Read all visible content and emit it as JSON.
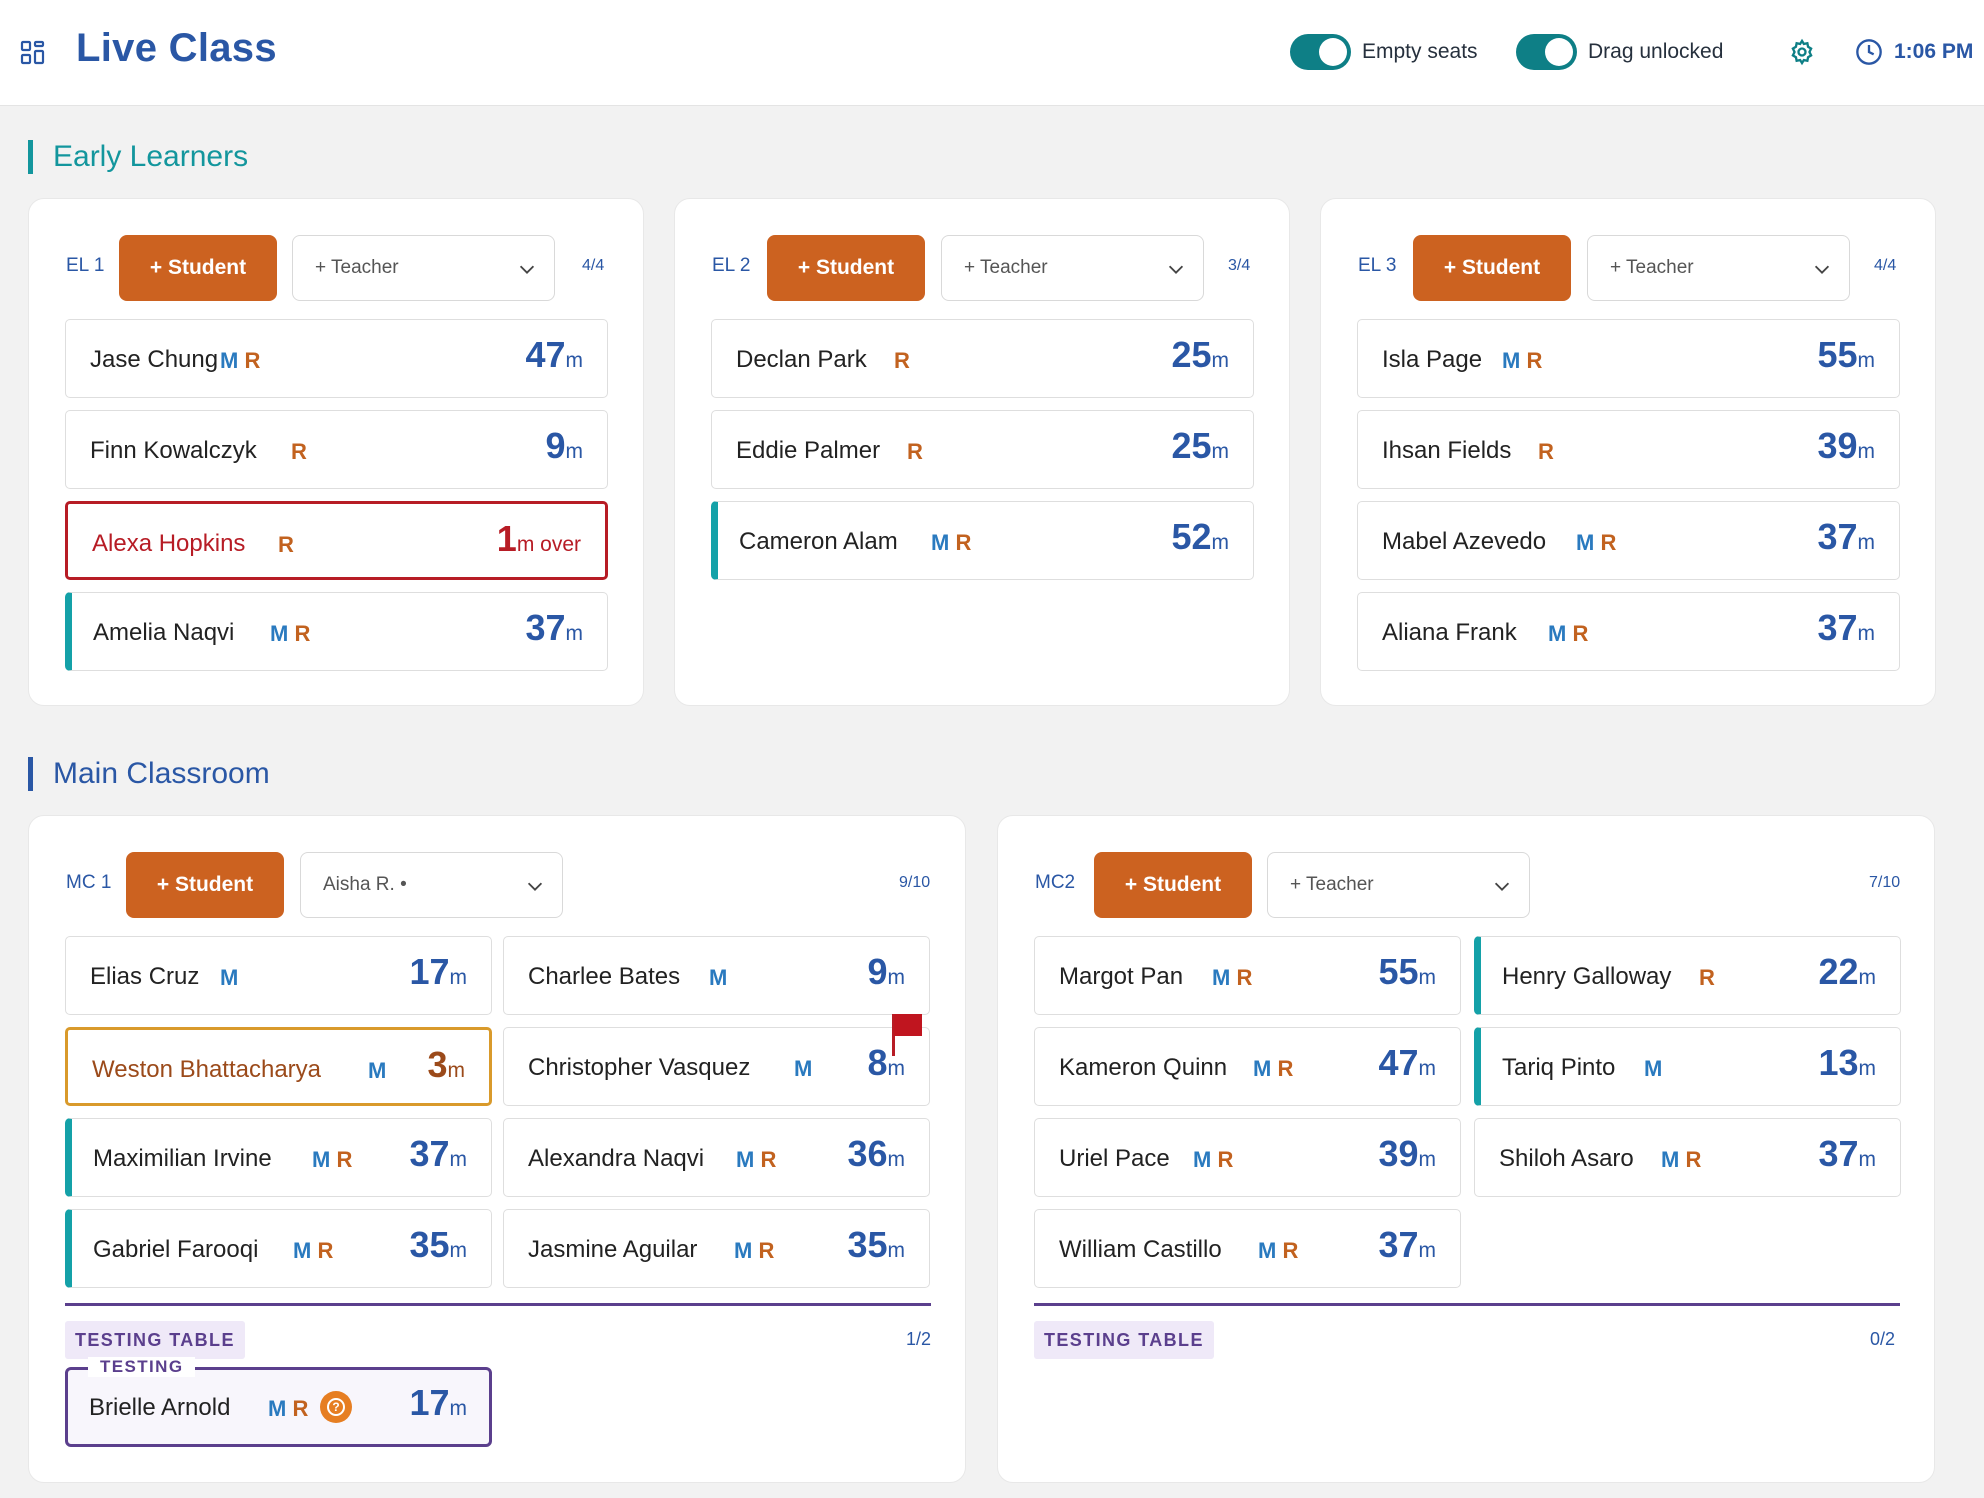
{
  "header": {
    "title": "Live Class",
    "toggle_empty_label": "Empty seats",
    "toggle_drag_label": "Drag unlocked",
    "time": "1:06 PM"
  },
  "colors": {
    "accent": "#2a57a5",
    "teal": "#0e7f86",
    "student_button": "#cc6220",
    "warning_red": "#b71c25",
    "testing_purple": "#5b3f8d"
  },
  "sections": {
    "early": {
      "title": "Early Learners"
    },
    "main": {
      "title": "Main Classroom"
    }
  },
  "tables": {
    "el1": {
      "label": "EL 1",
      "student_btn": "+ Student",
      "teacher": "+ Teacher",
      "count": "4/4",
      "seats": [
        {
          "name": "Jase Chung",
          "tags": "MR",
          "time": "47",
          "unit": "m"
        },
        {
          "name": "Finn Kowalczyk",
          "tags": "R",
          "time": "9",
          "unit": "m"
        },
        {
          "name": "Alexa Hopkins",
          "tags": "R",
          "time": "1",
          "unit": "m over"
        },
        {
          "name": "Amelia Naqvi",
          "tags": "MR",
          "time": "37",
          "unit": "m"
        }
      ]
    },
    "el2": {
      "label": "EL 2",
      "student_btn": "+ Student",
      "teacher": "+ Teacher",
      "count": "3/4",
      "seats": [
        {
          "name": "Declan Park",
          "tags": "R",
          "time": "25",
          "unit": "m"
        },
        {
          "name": "Eddie Palmer",
          "tags": "R",
          "time": "25",
          "unit": "m"
        },
        {
          "name": "Cameron Alam",
          "tags": "MR",
          "time": "52",
          "unit": "m"
        }
      ]
    },
    "el3": {
      "label": "EL 3",
      "student_btn": "+ Student",
      "teacher": "+ Teacher",
      "count": "4/4",
      "seats": [
        {
          "name": "Isla Page",
          "tags": "MR",
          "time": "55",
          "unit": "m"
        },
        {
          "name": "Ihsan Fields",
          "tags": "R",
          "time": "39",
          "unit": "m"
        },
        {
          "name": "Mabel Azevedo",
          "tags": "MR",
          "time": "37",
          "unit": "m"
        },
        {
          "name": "Aliana Frank",
          "tags": "MR",
          "time": "37",
          "unit": "m"
        }
      ]
    },
    "mc1": {
      "label": "MC 1",
      "student_btn": "+ Student",
      "teacher": "Aisha R. •",
      "count": "9/10",
      "seats": [
        {
          "name": "Elias Cruz",
          "tags": "M",
          "time": "17",
          "unit": "m"
        },
        {
          "name": "Charlee Bates",
          "tags": "M",
          "time": "9",
          "unit": "m"
        },
        {
          "name": "Weston Bhattacharya",
          "tags": "M",
          "time": "3",
          "unit": "m"
        },
        {
          "name": "Christopher Vasquez",
          "tags": "M",
          "time": "8",
          "unit": "m"
        },
        {
          "name": "Maximilian Irvine",
          "tags": "MR",
          "time": "37",
          "unit": "m"
        },
        {
          "name": "Alexandra Naqvi",
          "tags": "MR",
          "time": "36",
          "unit": "m"
        },
        {
          "name": "Gabriel Farooqi",
          "tags": "MR",
          "time": "35",
          "unit": "m"
        },
        {
          "name": "Jasmine Aguilar",
          "tags": "MR",
          "time": "35",
          "unit": "m"
        }
      ],
      "testing": {
        "tag": "TESTING TABLE",
        "count": "1/2",
        "legend": "TESTING",
        "seat": {
          "name": "Brielle Arnold",
          "tags": "MR",
          "time": "17",
          "unit": "m"
        }
      }
    },
    "mc2": {
      "label": "MC2",
      "student_btn": "+ Student",
      "teacher": "+ Teacher",
      "count": "7/10",
      "seats": [
        {
          "name": "Margot Pan",
          "tags": "MR",
          "time": "55",
          "unit": "m"
        },
        {
          "name": "Henry Galloway",
          "tags": "R",
          "time": "22",
          "unit": "m"
        },
        {
          "name": "Kameron Quinn",
          "tags": "MR",
          "time": "47",
          "unit": "m"
        },
        {
          "name": "Tariq Pinto",
          "tags": "M",
          "time": "13",
          "unit": "m"
        },
        {
          "name": "Uriel Pace",
          "tags": "MR",
          "time": "39",
          "unit": "m"
        },
        {
          "name": "Shiloh Asaro",
          "tags": "MR",
          "time": "37",
          "unit": "m"
        },
        {
          "name": "William Castillo",
          "tags": "MR",
          "time": "37",
          "unit": "m"
        }
      ],
      "testing": {
        "tag": "TESTING TABLE",
        "count": "0/2"
      }
    }
  }
}
